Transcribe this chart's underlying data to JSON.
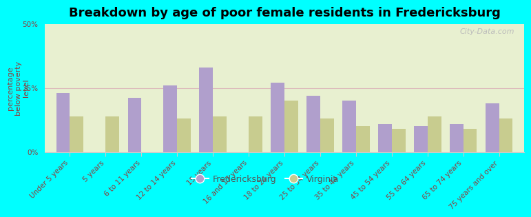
{
  "title": "Breakdown by age of poor female residents in Fredericksburg",
  "ylabel": "percentage\nbelow poverty\nlevel",
  "categories": [
    "Under 5 years",
    "5 years",
    "6 to 11 years",
    "12 to 14 years",
    "15 years",
    "16 and 17 years",
    "18 to 24 years",
    "25 to 34 years",
    "35 to 44 years",
    "45 to 54 years",
    "55 to 64 years",
    "65 to 74 years",
    "75 years and over"
  ],
  "fredericksburg": [
    23,
    0,
    21,
    26,
    33,
    0,
    27,
    22,
    20,
    11,
    10,
    11,
    19
  ],
  "virginia": [
    14,
    14,
    0,
    13,
    14,
    14,
    20,
    13,
    10,
    9,
    14,
    9,
    13
  ],
  "fredericksburg_color": "#b09fcc",
  "virginia_color": "#c8cc8f",
  "background_plot_top": "#e8f0d0",
  "background_plot_bottom": "#d8e8c8",
  "background_fig": "#00ffff",
  "ylim": [
    0,
    50
  ],
  "yticks": [
    0,
    25,
    50
  ],
  "ytick_labels": [
    "0%",
    "25%",
    "50%"
  ],
  "bar_width": 0.38,
  "title_fontsize": 13,
  "tick_fontsize": 7.5,
  "ylabel_fontsize": 8,
  "legend_fontsize": 9,
  "label_color": "#8b4040"
}
